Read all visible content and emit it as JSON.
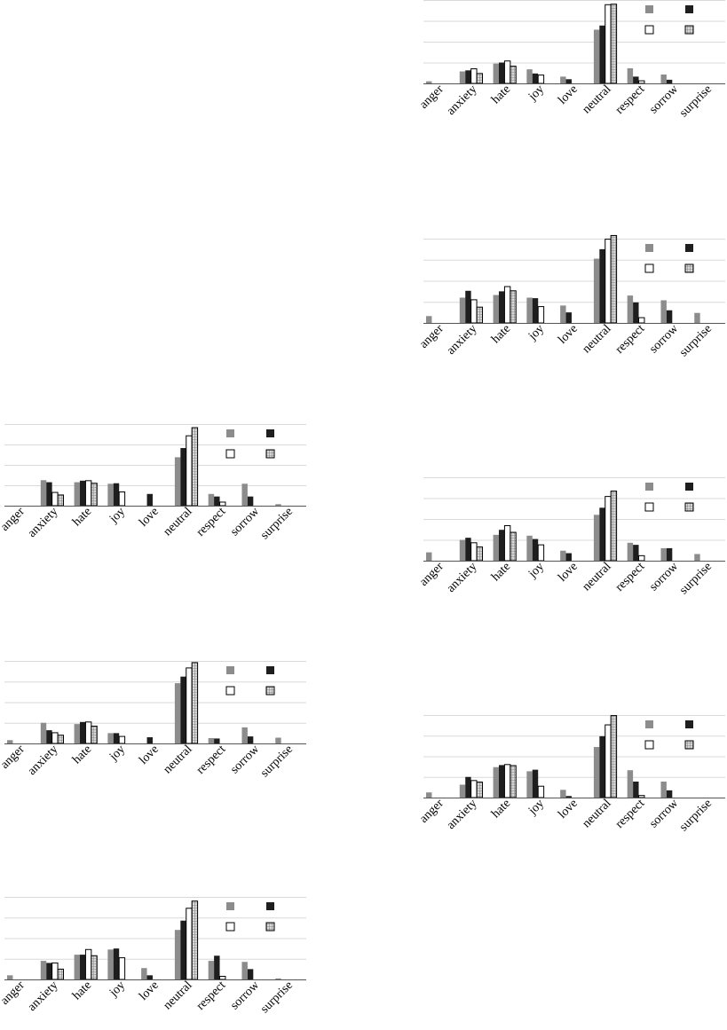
{
  "colors": {
    "gray": "#8c8c8c",
    "black": "#1e1e1e",
    "white": "#ffffff",
    "hatched": "#d8d8d8",
    "grid": "#d9d9d9",
    "axis": "#555555",
    "text": "#000000"
  },
  "chart_data": [
    {
      "type": "bar",
      "categories": [
        "anger",
        "anxiety",
        "hate",
        "joy",
        "love",
        "neutral",
        "respect",
        "sorrow",
        "surprise"
      ],
      "series": [
        {
          "style": "gray",
          "values": [
            0.4,
            2.3,
            3.8,
            2.7,
            1.3,
            10.3,
            2.9,
            1.7,
            0.0
          ]
        },
        {
          "style": "black",
          "values": [
            0.0,
            2.5,
            4.0,
            1.9,
            0.8,
            11.1,
            1.3,
            0.7,
            0.0
          ]
        },
        {
          "style": "white",
          "values": [
            0.0,
            2.8,
            4.3,
            1.6,
            0.0,
            15.1,
            0.5,
            0.0,
            0.0
          ]
        },
        {
          "style": "hatched",
          "values": [
            0.0,
            1.9,
            3.3,
            0.0,
            0.0,
            15.2,
            0.0,
            0.0,
            0.0
          ]
        }
      ],
      "ylim": [
        0,
        16
      ],
      "grid": true,
      "legend": "top-right"
    },
    {
      "type": "bar",
      "categories": [
        "anger",
        "anxiety",
        "hate",
        "joy",
        "love",
        "neutral",
        "respect",
        "sorrow",
        "surprise"
      ],
      "series": [
        {
          "style": "gray",
          "values": [
            1.3,
            4.8,
            5.3,
            4.8,
            3.3,
            12.2,
            5.2,
            4.3,
            1.9
          ]
        },
        {
          "style": "black",
          "values": [
            0.0,
            6.1,
            6.0,
            4.7,
            2.0,
            14.0,
            3.9,
            2.4,
            0.0
          ]
        },
        {
          "style": "white",
          "values": [
            0.0,
            4.4,
            6.9,
            3.1,
            0.0,
            15.9,
            1.0,
            0.0,
            0.0
          ]
        },
        {
          "style": "hatched",
          "values": [
            0.0,
            3.0,
            6.1,
            0.0,
            0.0,
            16.6,
            0.0,
            0.0,
            0.0
          ]
        }
      ],
      "ylim": [
        0,
        16
      ],
      "grid": true,
      "legend": "top-right"
    },
    {
      "type": "bar",
      "categories": [
        "anger",
        "anxiety",
        "hate",
        "joy",
        "love",
        "neutral",
        "respect",
        "sorrow",
        "surprise"
      ],
      "series": [
        {
          "style": "gray",
          "values": [
            0.0,
            5.0,
            4.6,
            4.3,
            0.0,
            9.5,
            2.3,
            4.3,
            0.3
          ]
        },
        {
          "style": "black",
          "values": [
            0.0,
            4.6,
            4.9,
            4.4,
            2.3,
            11.3,
            1.8,
            1.8,
            0.0
          ]
        },
        {
          "style": "white",
          "values": [
            0.0,
            2.6,
            4.9,
            2.7,
            0.0,
            13.7,
            0.7,
            0.0,
            0.0
          ]
        },
        {
          "style": "hatched",
          "values": [
            0.0,
            2.1,
            4.4,
            0.0,
            0.0,
            15.3,
            0.0,
            0.0,
            0.0
          ]
        }
      ],
      "ylim": [
        0,
        16
      ],
      "grid": true,
      "legend": "top-right"
    },
    {
      "type": "bar",
      "categories": [
        "anger",
        "anxiety",
        "hate",
        "joy",
        "love",
        "neutral",
        "respect",
        "sorrow",
        "surprise"
      ],
      "series": [
        {
          "style": "gray",
          "values": [
            2.0,
            5.0,
            6.2,
            6.0,
            2.4,
            11.0,
            4.3,
            3.0,
            1.6
          ]
        },
        {
          "style": "black",
          "values": [
            0.0,
            5.5,
            7.4,
            5.2,
            1.8,
            12.7,
            3.8,
            3.0,
            0.0
          ]
        },
        {
          "style": "white",
          "values": [
            0.0,
            4.3,
            8.4,
            3.8,
            0.0,
            15.4,
            1.2,
            0.0,
            0.0
          ]
        },
        {
          "style": "hatched",
          "values": [
            0.0,
            3.3,
            6.8,
            0.0,
            0.0,
            16.7,
            0.0,
            0.0,
            0.0
          ]
        }
      ],
      "ylim": [
        0,
        20
      ],
      "grid": true,
      "legend": "top-right"
    },
    {
      "type": "bar",
      "categories": [
        "anger",
        "anxiety",
        "hate",
        "joy",
        "love",
        "neutral",
        "respect",
        "sorrow",
        "surprise"
      ],
      "series": [
        {
          "style": "gray",
          "values": [
            0.8,
            5.0,
            4.7,
            2.5,
            0.0,
            14.6,
            1.3,
            3.9,
            1.4
          ]
        },
        {
          "style": "black",
          "values": [
            0.0,
            3.2,
            5.2,
            2.5,
            1.5,
            16.2,
            1.2,
            1.7,
            0.0
          ]
        },
        {
          "style": "white",
          "values": [
            0.0,
            2.6,
            5.2,
            1.7,
            0.0,
            18.3,
            0.0,
            0.0,
            0.0
          ]
        },
        {
          "style": "hatched",
          "values": [
            0.0,
            2.0,
            4.2,
            0.0,
            0.0,
            19.6,
            0.0,
            0.0,
            0.0
          ]
        }
      ],
      "ylim": [
        0,
        20
      ],
      "grid": true,
      "legend": "top-right"
    },
    {
      "type": "bar",
      "categories": [
        "anger",
        "anxiety",
        "hate",
        "joy",
        "love",
        "neutral",
        "respect",
        "sorrow",
        "surprise"
      ],
      "series": [
        {
          "style": "gray",
          "values": [
            1.0,
            2.5,
            5.9,
            5.1,
            1.5,
            9.8,
            5.3,
            3.1,
            0.0
          ]
        },
        {
          "style": "black",
          "values": [
            0.0,
            4.0,
            6.3,
            5.4,
            0.3,
            11.9,
            3.1,
            1.4,
            0.0
          ]
        },
        {
          "style": "white",
          "values": [
            0.0,
            3.3,
            6.4,
            2.2,
            0.0,
            14.1,
            0.4,
            0.0,
            0.0
          ]
        },
        {
          "style": "hatched",
          "values": [
            0.0,
            3.0,
            6.2,
            0.0,
            0.0,
            15.9,
            0.0,
            0.0,
            0.0
          ]
        }
      ],
      "ylim": [
        0,
        16
      ],
      "grid": true,
      "legend": "top-right"
    },
    {
      "type": "bar",
      "categories": [
        "anger",
        "anxiety",
        "hate",
        "joy",
        "love",
        "neutral",
        "respect",
        "sorrow",
        "surprise"
      ],
      "series": [
        {
          "style": "gray",
          "values": [
            0.8,
            3.6,
            4.8,
            5.8,
            2.2,
            9.6,
            3.6,
            3.4,
            0.2
          ]
        },
        {
          "style": "black",
          "values": [
            0.0,
            3.2,
            4.8,
            6.0,
            0.8,
            11.4,
            4.6,
            2.0,
            0.0
          ]
        },
        {
          "style": "white",
          "values": [
            0.0,
            3.2,
            5.8,
            4.2,
            0.0,
            13.8,
            0.6,
            0.0,
            0.0
          ]
        },
        {
          "style": "hatched",
          "values": [
            0.0,
            2.0,
            4.6,
            0.0,
            0.0,
            15.2,
            0.0,
            0.0,
            0.0
          ]
        }
      ],
      "ylim": [
        0,
        16
      ],
      "grid": true,
      "legend": "top-right"
    }
  ]
}
